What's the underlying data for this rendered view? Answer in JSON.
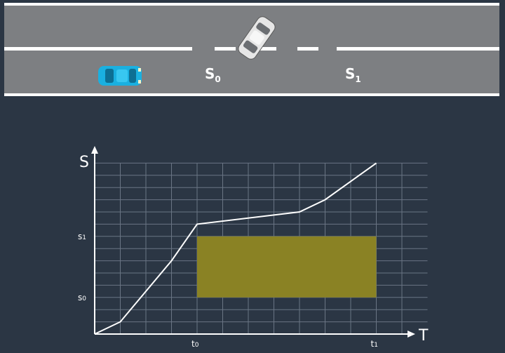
{
  "road": {
    "label_s0": "S",
    "label_s0_sub": "0",
    "label_s1": "S",
    "label_s1_sub": "1",
    "ego_car_color": "#1ab0e0",
    "other_car_color": "#e6e6e6",
    "road_color": "#7d7f82",
    "line_color": "#ffffff"
  },
  "chart_data": {
    "type": "line",
    "xlabel": "T",
    "ylabel": "S",
    "x_ticks": [
      {
        "main": "t",
        "sub": "0",
        "value": 4
      },
      {
        "main": "t",
        "sub": "1",
        "value": 11
      }
    ],
    "y_ticks": [
      {
        "main": "s",
        "sub": "0",
        "value": 3
      },
      {
        "main": "s",
        "sub": "1",
        "value": 8
      }
    ],
    "xlim": [
      0,
      12
    ],
    "ylim": [
      0,
      14
    ],
    "grid": true,
    "series": [
      {
        "color": "#ffffff",
        "points": [
          [
            0,
            0
          ],
          [
            1,
            1
          ],
          [
            3,
            6
          ],
          [
            4,
            9
          ],
          [
            8,
            10
          ],
          [
            9,
            11
          ],
          [
            11,
            14
          ]
        ]
      }
    ],
    "shaded_region": {
      "x": [
        4,
        11
      ],
      "y": [
        3,
        8
      ],
      "color": "#8a8224"
    }
  }
}
